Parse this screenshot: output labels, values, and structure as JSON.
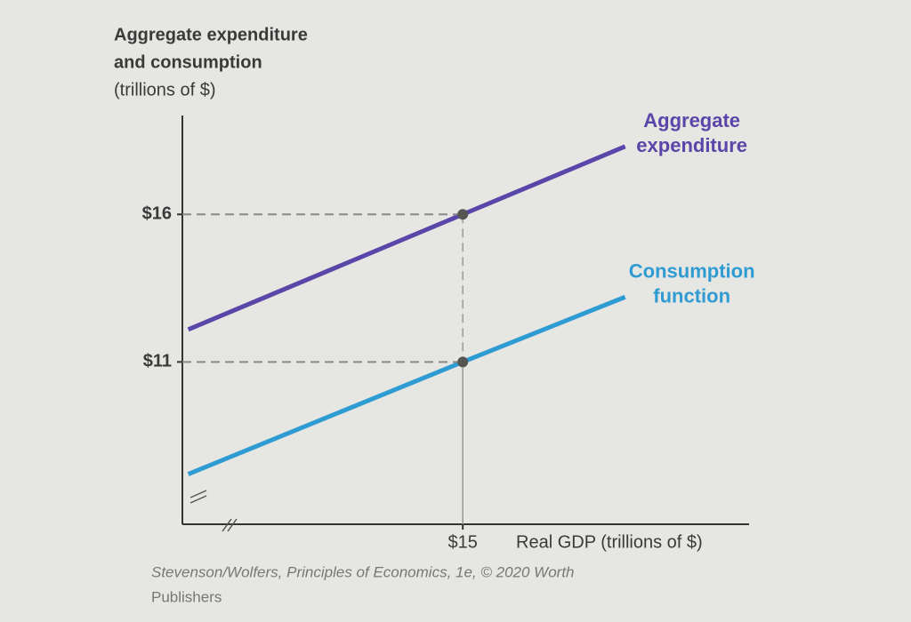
{
  "chart_data": {
    "type": "line",
    "ylabel": [
      "Aggregate expenditure",
      "and consumption",
      "(trillions of $)"
    ],
    "xlabel": "Real GDP (trillions of $)",
    "source": [
      "Stevenson/Wolfers, Principles of Economics, 1e, © 2020 Worth",
      "Publishers"
    ],
    "x": [
      5.7,
      15,
      20.5
    ],
    "series": [
      {
        "name": "Aggregate expenditure",
        "color": "#5a46a8",
        "values": [
          12.1,
          16,
          18.3
        ]
      },
      {
        "name": "Consumption function",
        "color": "#2f9bd3",
        "values": [
          7.2,
          11,
          13.2
        ]
      }
    ],
    "xlim": [
      5.5,
      24.7
    ],
    "ylim": [
      5.5,
      19.5
    ],
    "xticks": [
      {
        "value": 15,
        "label": "$15"
      }
    ],
    "yticks": [
      {
        "value": 16,
        "label": "$16"
      },
      {
        "value": 11,
        "label": "$11"
      }
    ]
  }
}
